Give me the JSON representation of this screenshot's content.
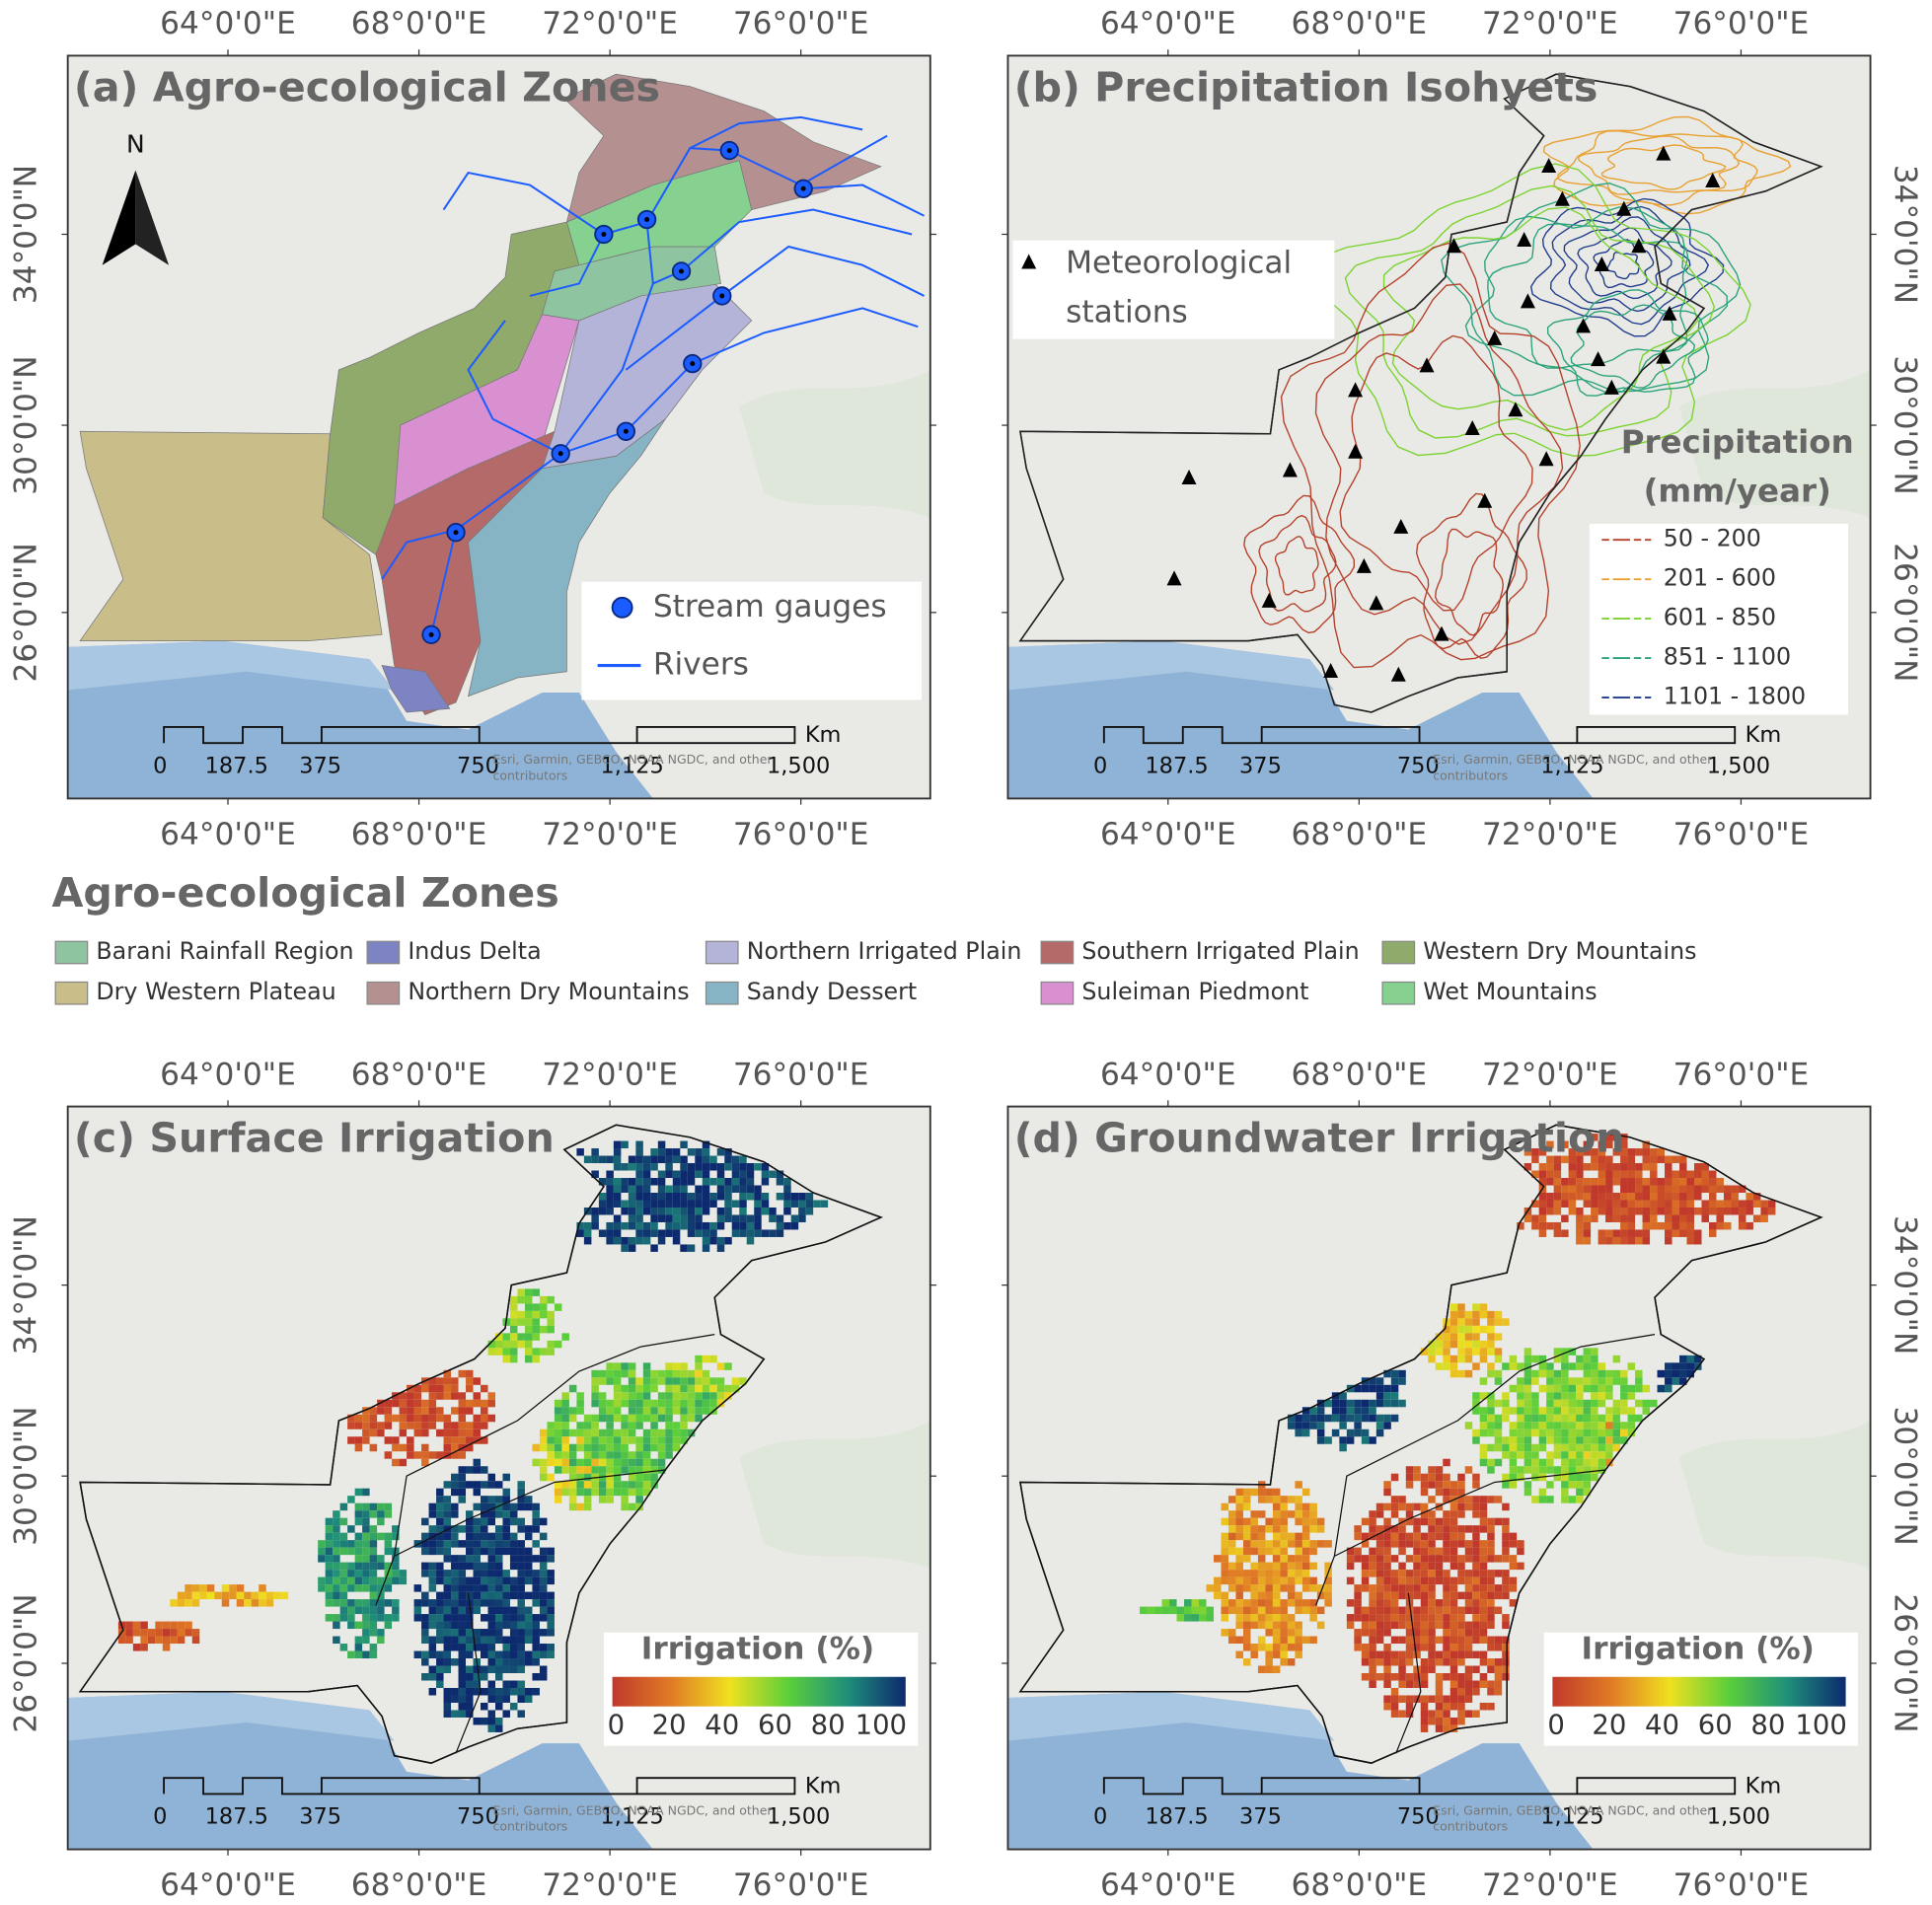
{
  "longitude_labels": [
    "64°0'0\"E",
    "68°0'0\"E",
    "72°0'0\"E",
    "76°0'0\"E"
  ],
  "latitude_labels": [
    "34°0'0\"N",
    "30°0'0\"N",
    "26°0'0\"N"
  ],
  "scale_bar": {
    "labels": [
      "0",
      "187.5",
      "375",
      "750",
      "1,125",
      "1,500"
    ],
    "unit": "Km"
  },
  "attribution": [
    "Esri, Garmin, GEBCO, NOAA NGDC, and other",
    "contributors"
  ],
  "panels": [
    {
      "title": "(a) Agro-ecological Zones",
      "north": "N",
      "legend": {
        "gauges": "Stream gauges",
        "rivers": "Rivers"
      }
    },
    {
      "title": "(b) Precipitation Isohyets",
      "stations": [
        "Meteorological",
        "stations"
      ],
      "legend": {
        "title": [
          "Precipitation",
          "(mm/year)"
        ],
        "classes": [
          {
            "label": "50 - 200",
            "color": "#b5412b"
          },
          {
            "label": "201 - 600",
            "color": "#e8a030"
          },
          {
            "label": "601 - 850",
            "color": "#7ad32e"
          },
          {
            "label": "851 - 1100",
            "color": "#2aa37a"
          },
          {
            "label": "1101 - 1800",
            "color": "#1f3c8c"
          }
        ]
      }
    },
    {
      "title": "(c) Surface Irrigation",
      "legend": {
        "title": "Irrigation (%)",
        "ticks": [
          0,
          20,
          40,
          60,
          80,
          100
        ]
      }
    },
    {
      "title": "(d) Groundwater Irrigation",
      "legend": {
        "title": "Irrigation (%)",
        "ticks": [
          0,
          20,
          40,
          60,
          80,
          100
        ]
      }
    }
  ],
  "zone_legend": {
    "title": "Agro-ecological Zones",
    "items": [
      {
        "label": "Barani Rainfall Region",
        "color": "#8fc4a0"
      },
      {
        "label": "Indus Delta",
        "color": "#7e83c4"
      },
      {
        "label": "Northern Irrigated Plain",
        "color": "#b4b4d8"
      },
      {
        "label": "Southern Irrigated Plain",
        "color": "#b56a6a"
      },
      {
        "label": "Western Dry Mountains",
        "color": "#8faa6a"
      },
      {
        "label": "Dry Western Plateau",
        "color": "#c9bd8a"
      },
      {
        "label": "Northern Dry Mountains",
        "color": "#b59090"
      },
      {
        "label": "Sandy Dessert",
        "color": "#86b4c4"
      },
      {
        "label": "Suleiman Piedmont",
        "color": "#d890d0"
      },
      {
        "label": "Wet Mountains",
        "color": "#86d090"
      }
    ]
  }
}
